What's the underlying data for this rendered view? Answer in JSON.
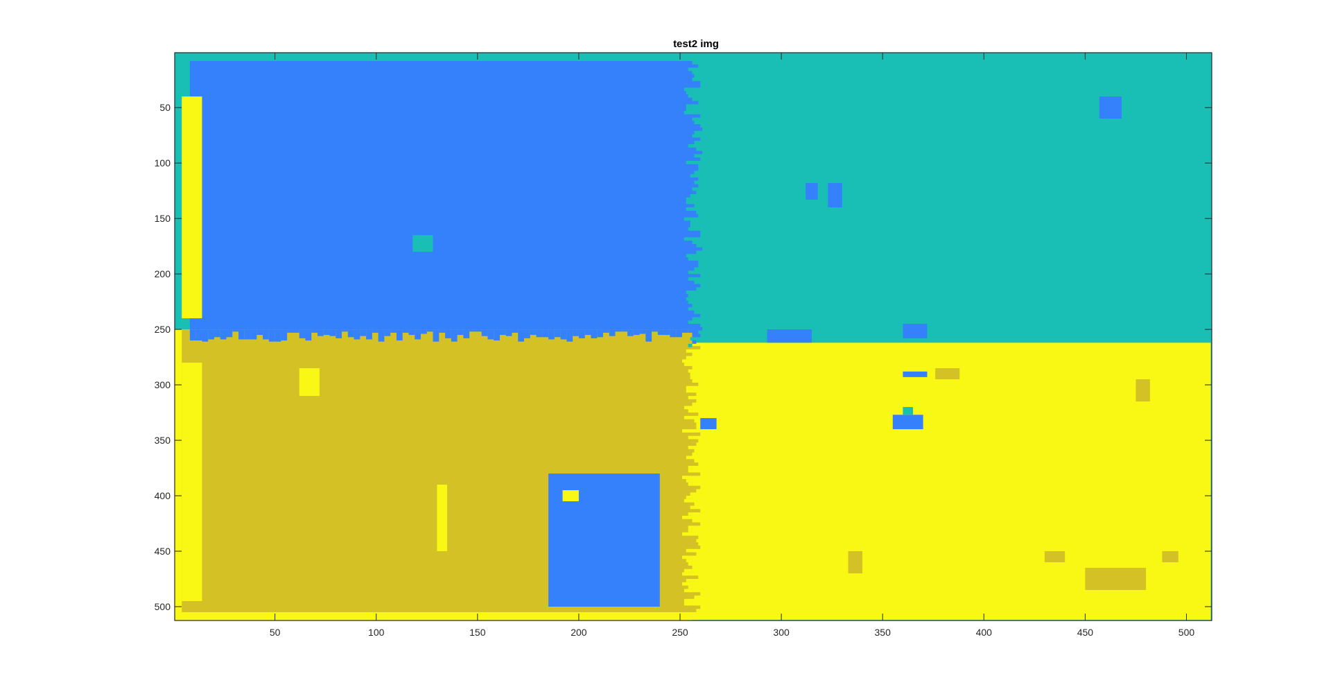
{
  "window": {
    "title": "test2 img"
  },
  "chart_data": {
    "type": "heatmap",
    "title": "test2 img",
    "xlabel": "",
    "ylabel": "",
    "xlim": [
      0.5,
      512.5
    ],
    "ylim": [
      0.5,
      512.5
    ],
    "y_reversed": true,
    "x_ticks": [
      50,
      100,
      150,
      200,
      250,
      300,
      350,
      400,
      450,
      500
    ],
    "y_ticks": [
      50,
      100,
      150,
      200,
      250,
      300,
      350,
      400,
      450,
      500
    ],
    "grid": false,
    "legend": "none",
    "colors": {
      "class_1": "#3580fb",
      "class_2": "#19bfb4",
      "class_3": "#d3c125",
      "class_4": "#f8f814"
    },
    "regions": [
      {
        "class": "class_1",
        "label": "",
        "x": [
          8,
          256
        ],
        "y": [
          8,
          265
        ]
      },
      {
        "class": "class_2",
        "label": "",
        "x": [
          256,
          512
        ],
        "y": [
          1,
          262
        ]
      },
      {
        "class": "class_3",
        "label": "",
        "x": [
          4,
          256
        ],
        "y": [
          250,
          505
        ]
      },
      {
        "class": "class_4",
        "label": "",
        "x": [
          256,
          512
        ],
        "y": [
          262,
          512
        ]
      }
    ],
    "blobs": [
      {
        "class": "class_1",
        "x": [
          185,
          240
        ],
        "y": [
          380,
          500
        ]
      },
      {
        "class": "class_1",
        "x": [
          355,
          370
        ],
        "y": [
          327,
          340
        ]
      },
      {
        "class": "class_1",
        "x": [
          260,
          268
        ],
        "y": [
          330,
          340
        ]
      },
      {
        "class": "class_1",
        "x": [
          360,
          372
        ],
        "y": [
          288,
          293
        ]
      },
      {
        "class": "class_1",
        "x": [
          457,
          468
        ],
        "y": [
          40,
          60
        ]
      },
      {
        "class": "class_1",
        "x": [
          312,
          318
        ],
        "y": [
          118,
          133
        ]
      },
      {
        "class": "class_1",
        "x": [
          323,
          330
        ],
        "y": [
          118,
          140
        ]
      },
      {
        "class": "class_1",
        "x": [
          293,
          315
        ],
        "y": [
          250,
          262
        ]
      },
      {
        "class": "class_1",
        "x": [
          360,
          372
        ],
        "y": [
          245,
          258
        ]
      },
      {
        "class": "class_2",
        "x": [
          118,
          128
        ],
        "y": [
          165,
          180
        ]
      },
      {
        "class": "class_2",
        "x": [
          360,
          365
        ],
        "y": [
          320,
          327
        ]
      },
      {
        "class": "class_3",
        "x": [
          450,
          480
        ],
        "y": [
          465,
          485
        ]
      },
      {
        "class": "class_3",
        "x": [
          475,
          482
        ],
        "y": [
          295,
          315
        ]
      },
      {
        "class": "class_3",
        "x": [
          333,
          340
        ],
        "y": [
          450,
          470
        ]
      },
      {
        "class": "class_3",
        "x": [
          376,
          388
        ],
        "y": [
          285,
          295
        ]
      },
      {
        "class": "class_3",
        "x": [
          430,
          440
        ],
        "y": [
          450,
          460
        ]
      },
      {
        "class": "class_3",
        "x": [
          488,
          496
        ],
        "y": [
          450,
          460
        ]
      },
      {
        "class": "class_4",
        "x": [
          62,
          72
        ],
        "y": [
          285,
          310
        ]
      },
      {
        "class": "class_4",
        "x": [
          130,
          135
        ],
        "y": [
          390,
          450
        ]
      },
      {
        "class": "class_4",
        "x": [
          192,
          200
        ],
        "y": [
          395,
          405
        ]
      },
      {
        "class": "class_4",
        "x": [
          4,
          14
        ],
        "y": [
          40,
          240
        ]
      },
      {
        "class": "class_4",
        "x": [
          4,
          14
        ],
        "y": [
          280,
          495
        ]
      }
    ]
  }
}
